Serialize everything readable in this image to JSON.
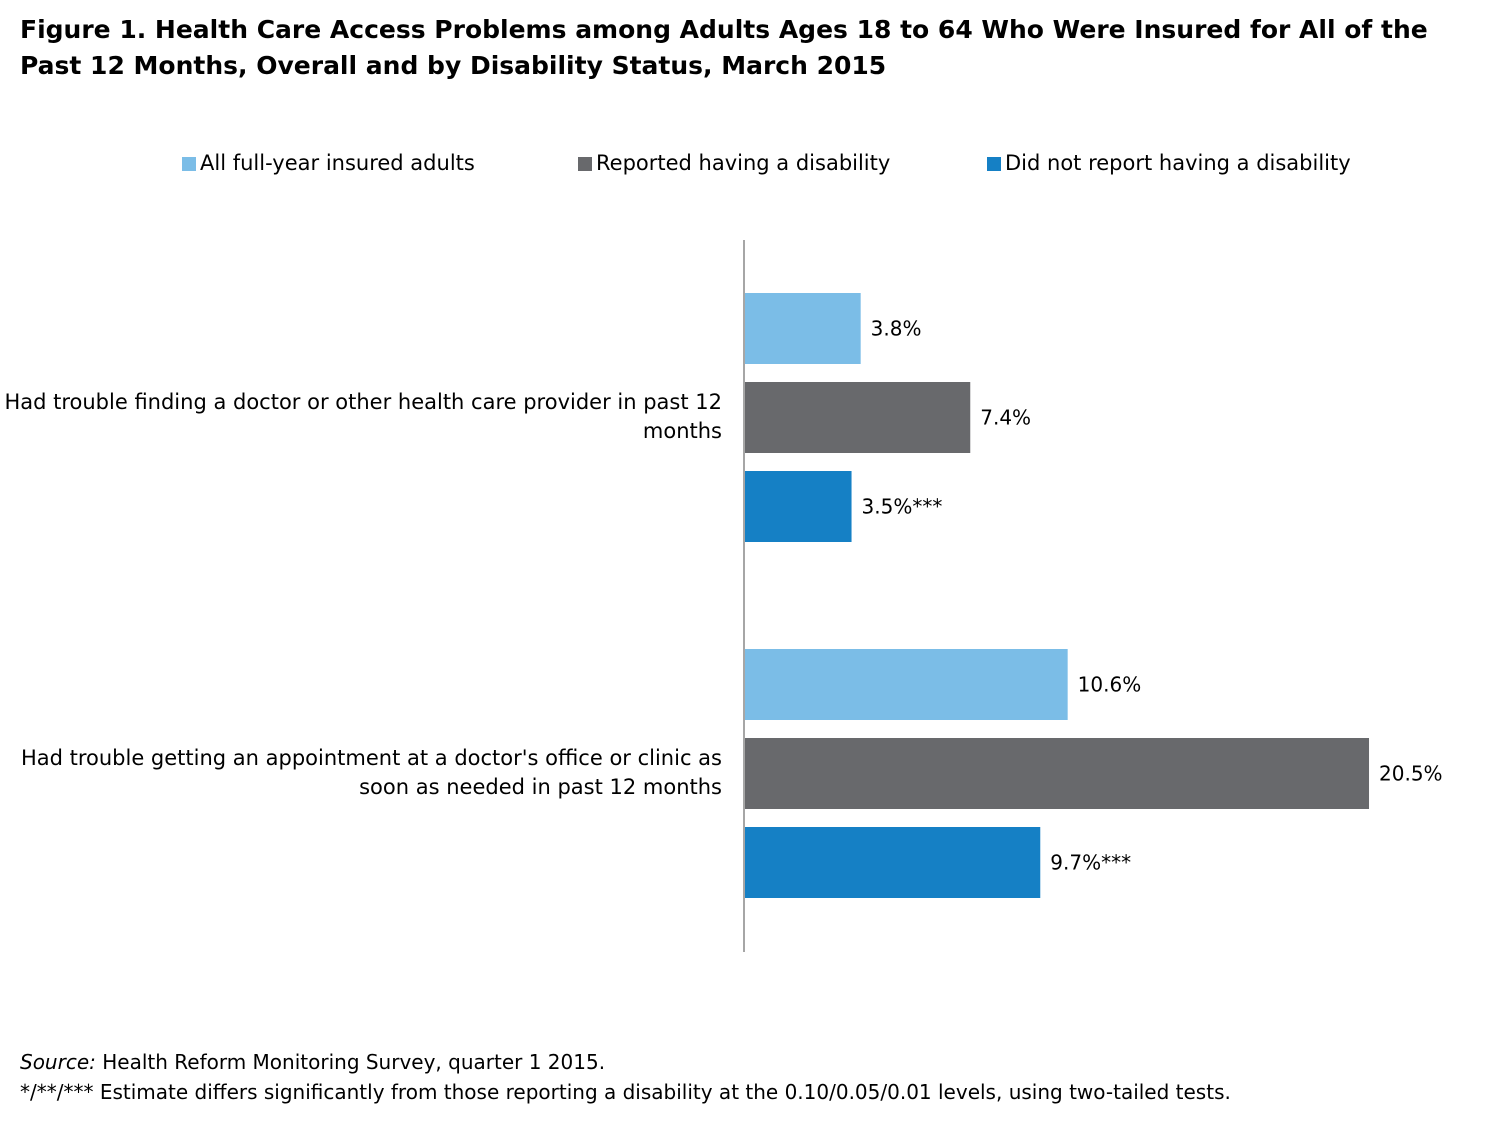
{
  "title": "Figure 1. Health Care Access Problems among Adults Ages 18 to 64 Who Were Insured for All of the Past 12 Months, Overall and by Disability Status, March 2015",
  "colors": {
    "all": "#7bbde7",
    "disability": "#68696c",
    "no_disability": "#1580c5",
    "axis": "#888888"
  },
  "chart_data": {
    "type": "bar",
    "orientation": "horizontal",
    "title": "Figure 1. Health Care Access Problems among Adults Ages 18 to 64 Who Were Insured for All of the Past 12 Months, Overall and by Disability Status, March 2015",
    "categories": [
      "Had trouble finding a doctor or other health care provider in past 12 months",
      "Had trouble getting an appointment at a doctor's office or clinic as soon as needed in past 12 months"
    ],
    "series": [
      {
        "name": "All full-year insured adults",
        "values": [
          3.8,
          10.6
        ],
        "labels": [
          "3.8%",
          "10.6%"
        ]
      },
      {
        "name": "Reported having a disability",
        "values": [
          7.4,
          20.5
        ],
        "labels": [
          "7.4%",
          "20.5%"
        ]
      },
      {
        "name": "Did not report having a disability",
        "values": [
          3.5,
          9.7
        ],
        "labels": [
          "3.5%***",
          "9.7%***"
        ]
      }
    ],
    "xlim": [
      0,
      21
    ],
    "legend_position": "top",
    "grid": false
  },
  "footer": {
    "source_label": "Source:",
    "source_text": " Health Reform Monitoring Survey, quarter 1 2015.",
    "note": "*/**/*** Estimate differs significantly from those reporting a disability at the 0.10/0.05/0.01 levels, using two-tailed tests."
  }
}
